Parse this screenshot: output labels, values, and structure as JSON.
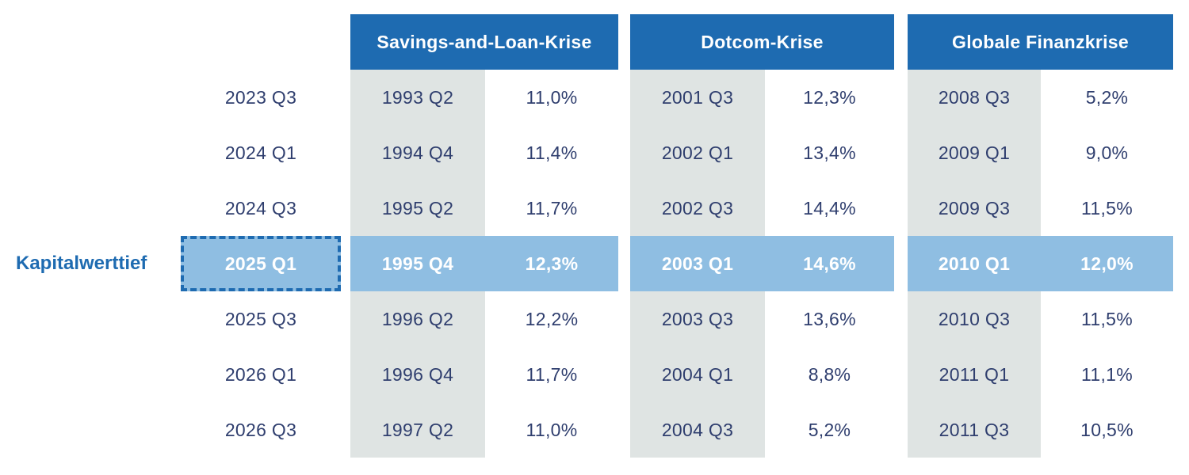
{
  "annotation": {
    "label": "Kapitalwerttief"
  },
  "colors": {
    "header_blue": "#1E6BB1",
    "highlight_blue": "#8FBEE2",
    "column_gray": "#DFE4E3",
    "text_navy": "#2F3E6E",
    "text_white": "#FFFFFF"
  },
  "groups": [
    {
      "title": "Savings-and-Loan-Krise"
    },
    {
      "title": "Dotcom-Krise"
    },
    {
      "title": "Globale Finanzkrise"
    }
  ],
  "rows": [
    {
      "period": "2023 Q3",
      "savings_quarter": "1993 Q2",
      "savings_value": "11,0%",
      "dotcom_quarter": "2001 Q3",
      "dotcom_value": "12,3%",
      "gfc_quarter": "2008 Q3",
      "gfc_value": "5,2%"
    },
    {
      "period": "2024 Q1",
      "savings_quarter": "1994 Q4",
      "savings_value": "11,4%",
      "dotcom_quarter": "2002 Q1",
      "dotcom_value": "13,4%",
      "gfc_quarter": "2009 Q1",
      "gfc_value": "9,0%"
    },
    {
      "period": "2024 Q3",
      "savings_quarter": "1995 Q2",
      "savings_value": "11,7%",
      "dotcom_quarter": "2002 Q3",
      "dotcom_value": "14,4%",
      "gfc_quarter": "2009 Q3",
      "gfc_value": "11,5%"
    },
    {
      "period": "2025 Q1",
      "savings_quarter": "1995 Q4",
      "savings_value": "12,3%",
      "dotcom_quarter": "2003 Q1",
      "dotcom_value": "14,6%",
      "gfc_quarter": "2010 Q1",
      "gfc_value": "12,0%",
      "highlighted": true
    },
    {
      "period": "2025 Q3",
      "savings_quarter": "1996 Q2",
      "savings_value": "12,2%",
      "dotcom_quarter": "2003 Q3",
      "dotcom_value": "13,6%",
      "gfc_quarter": "2010 Q3",
      "gfc_value": "11,5%"
    },
    {
      "period": "2026 Q1",
      "savings_quarter": "1996 Q4",
      "savings_value": "11,7%",
      "dotcom_quarter": "2004 Q1",
      "dotcom_value": "8,8%",
      "gfc_quarter": "2011 Q1",
      "gfc_value": "11,1%"
    },
    {
      "period": "2026 Q3",
      "savings_quarter": "1997 Q2",
      "savings_value": "11,0%",
      "dotcom_quarter": "2004 Q3",
      "dotcom_value": "5,2%",
      "gfc_quarter": "2011 Q3",
      "gfc_value": "10,5%"
    }
  ],
  "chart_data": {
    "type": "table",
    "title": "",
    "annotation": "Kapitalwerttief",
    "highlight_row_index": 3,
    "highlight_period": "2025 Q1",
    "current_periods": [
      "2023 Q3",
      "2024 Q1",
      "2024 Q3",
      "2025 Q1",
      "2025 Q3",
      "2026 Q1",
      "2026 Q3"
    ],
    "series": [
      {
        "name": "Savings-and-Loan-Krise",
        "quarters": [
          "1993 Q2",
          "1994 Q4",
          "1995 Q2",
          "1995 Q4",
          "1996 Q2",
          "1996 Q4",
          "1997 Q2"
        ],
        "values_pct": [
          11.0,
          11.4,
          11.7,
          12.3,
          12.2,
          11.7,
          11.0
        ]
      },
      {
        "name": "Dotcom-Krise",
        "quarters": [
          "2001 Q3",
          "2002 Q1",
          "2002 Q3",
          "2003 Q1",
          "2003 Q3",
          "2004 Q1",
          "2004 Q3"
        ],
        "values_pct": [
          12.3,
          13.4,
          14.4,
          14.6,
          13.6,
          8.8,
          5.2
        ]
      },
      {
        "name": "Globale Finanzkrise",
        "quarters": [
          "2008 Q3",
          "2009 Q1",
          "2009 Q3",
          "2010 Q1",
          "2010 Q3",
          "2011 Q1",
          "2011 Q3"
        ],
        "values_pct": [
          5.2,
          9.0,
          11.5,
          12.0,
          11.5,
          11.1,
          10.5
        ]
      }
    ]
  }
}
